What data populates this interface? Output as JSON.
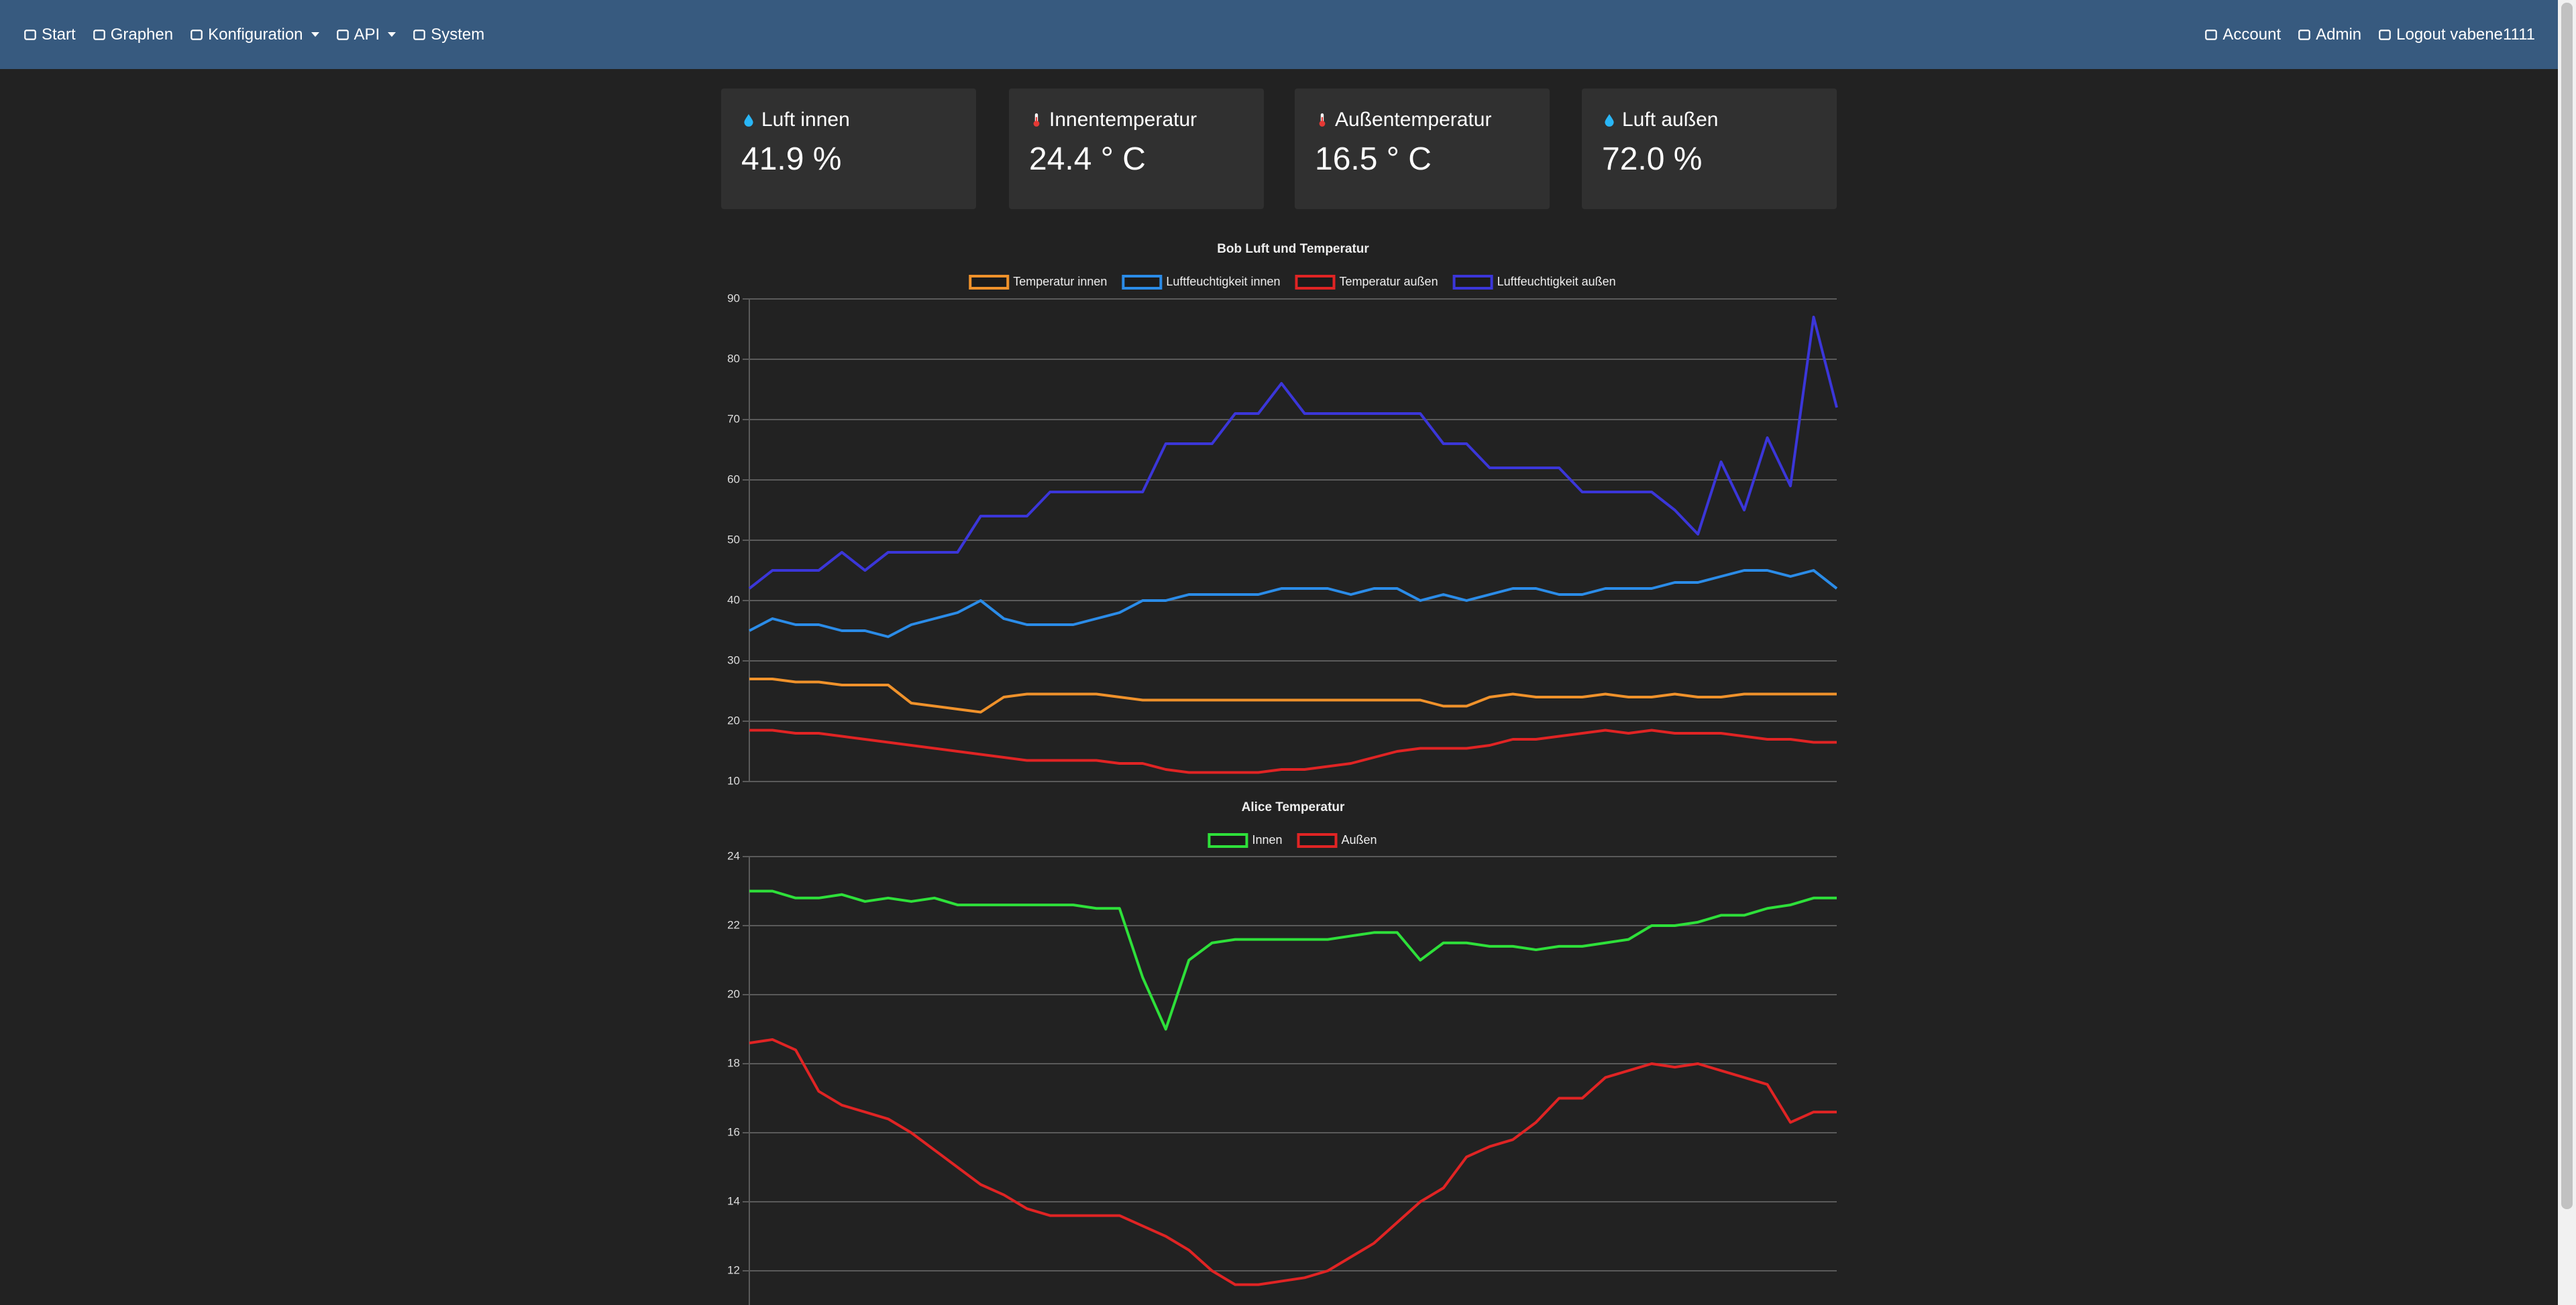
{
  "nav": {
    "left": [
      "Start",
      "Graphen",
      "Konfiguration",
      "API",
      "System"
    ],
    "right": [
      "Account",
      "Admin",
      "Logout vabene1111"
    ]
  },
  "cards": [
    {
      "label": "Luft innen",
      "value": "41.9 %"
    },
    {
      "label": "Innentemperatur",
      "value": "24.4 ° C"
    },
    {
      "label": "Außentemperatur",
      "value": "16.5 ° C"
    },
    {
      "label": "Luft außen",
      "value": "72.0 %"
    }
  ],
  "chart_data": [
    {
      "type": "line",
      "title": "Bob Luft und Temperatur",
      "ylim": [
        10,
        90
      ],
      "yticks": [
        10,
        20,
        30,
        40,
        50,
        60,
        70,
        80,
        90
      ],
      "grid": true,
      "series": [
        {
          "name": "Temperatur innen",
          "color": "#f0922b",
          "values": [
            27,
            27,
            26.5,
            26.5,
            26,
            26,
            26,
            23,
            22.5,
            22,
            21.5,
            24,
            24.5,
            24.5,
            24.5,
            24.5,
            24,
            23.5,
            23.5,
            23.5,
            23.5,
            23.5,
            23.5,
            23.5,
            23.5,
            23.5,
            23.5,
            23.5,
            23.5,
            23.5,
            22.5,
            22.5,
            24,
            24.5,
            24,
            24,
            24,
            24.5,
            24,
            24,
            24.5,
            24,
            24,
            24.5,
            24.5,
            24.5,
            24.5,
            24.5
          ]
        },
        {
          "name": "Luftfeuchtigkeit innen",
          "color": "#2b8ce8",
          "values": [
            35,
            37,
            36,
            36,
            35,
            35,
            34,
            36,
            37,
            38,
            40,
            37,
            36,
            36,
            36,
            37,
            38,
            40,
            40,
            41,
            41,
            41,
            41,
            42,
            42,
            42,
            41,
            42,
            42,
            40,
            41,
            40,
            41,
            42,
            42,
            41,
            41,
            42,
            42,
            42,
            43,
            43,
            44,
            45,
            45,
            44,
            45,
            42
          ]
        },
        {
          "name": "Temperatur außen",
          "color": "#e02424",
          "values": [
            18.5,
            18.5,
            18,
            18,
            17.5,
            17,
            16.5,
            16,
            15.5,
            15,
            14.5,
            14,
            13.5,
            13.5,
            13.5,
            13.5,
            13,
            13,
            12,
            11.5,
            11.5,
            11.5,
            11.5,
            12,
            12,
            12.5,
            13,
            14,
            15,
            15.5,
            15.5,
            15.5,
            16,
            17,
            17,
            17.5,
            18,
            18.5,
            18,
            18.5,
            18,
            18,
            18,
            17.5,
            17,
            17,
            16.5,
            16.5
          ]
        },
        {
          "name": "Luftfeuchtigkeit außen",
          "color": "#3b36d9",
          "values": [
            42,
            45,
            45,
            45,
            48,
            45,
            48,
            48,
            48,
            48,
            54,
            54,
            54,
            58,
            58,
            58,
            58,
            58,
            66,
            66,
            66,
            71,
            71,
            76,
            71,
            71,
            71,
            71,
            71,
            71,
            66,
            66,
            62,
            62,
            62,
            62,
            58,
            58,
            58,
            58,
            55,
            51,
            63,
            55,
            67,
            59,
            87,
            72
          ]
        }
      ]
    },
    {
      "type": "line",
      "title": "Alice Temperatur",
      "ylim": [
        10,
        24
      ],
      "yticks": [
        12,
        14,
        16,
        18,
        20,
        22,
        24
      ],
      "grid": true,
      "series": [
        {
          "name": "Innen",
          "color": "#2ee03a",
          "values": [
            23,
            23,
            22.8,
            22.8,
            22.9,
            22.7,
            22.8,
            22.7,
            22.8,
            22.6,
            22.6,
            22.6,
            22.6,
            22.6,
            22.6,
            22.5,
            22.5,
            20.5,
            19,
            21,
            21.5,
            21.6,
            21.6,
            21.6,
            21.6,
            21.6,
            21.7,
            21.8,
            21.8,
            21,
            21.5,
            21.5,
            21.4,
            21.4,
            21.3,
            21.4,
            21.4,
            21.5,
            21.6,
            22,
            22,
            22.1,
            22.3,
            22.3,
            22.5,
            22.6,
            22.8,
            22.8
          ]
        },
        {
          "name": "Außen",
          "color": "#e02424",
          "values": [
            18.6,
            18.7,
            18.4,
            17.2,
            16.8,
            16.6,
            16.4,
            16,
            15.5,
            15,
            14.5,
            14.2,
            13.8,
            13.6,
            13.6,
            13.6,
            13.6,
            13.3,
            13,
            12.6,
            12,
            11.6,
            11.6,
            11.7,
            11.8,
            12,
            12.4,
            12.8,
            13.4,
            14,
            14.4,
            15.3,
            15.6,
            15.8,
            16.3,
            17,
            17,
            17.6,
            17.8,
            18,
            17.9,
            18,
            17.8,
            17.6,
            17.4,
            16.3,
            16.6,
            16.6
          ]
        }
      ]
    }
  ]
}
